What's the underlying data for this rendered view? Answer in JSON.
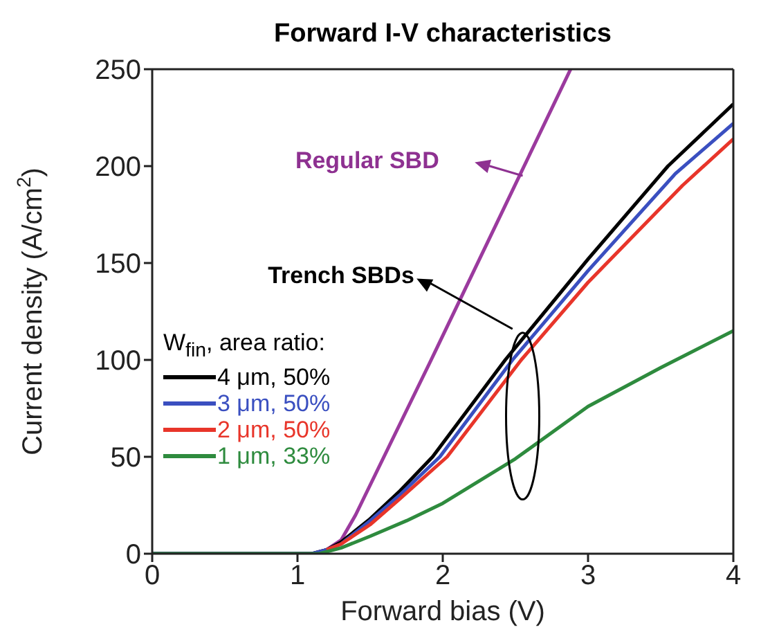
{
  "chart_data": {
    "type": "line",
    "title": "Forward I-V characteristics",
    "xlabel": "Forward bias (V)",
    "ylabel": "Current density (A/cm$^{2}$)",
    "legend_title": "W$_{fin}$, area ratio:",
    "legend": "left",
    "grid": false,
    "marker": "none",
    "line_style": "solid",
    "xlim": [
      0,
      4
    ],
    "ylim": [
      0,
      250
    ],
    "xticks": [
      0,
      1,
      2,
      3,
      4
    ],
    "yticks": [
      0,
      50,
      100,
      150,
      200,
      250
    ],
    "annotations": [
      "Regular SBD",
      "Trench SBDs"
    ],
    "series": [
      {
        "type": "line",
        "color": "#9b3a9e",
        "x": [
          0,
          1.1,
          1.2,
          1.3,
          1.4,
          1.92,
          2.56,
          2.88
        ],
        "values": [
          0,
          0,
          2,
          7,
          20,
          100,
          200,
          250
        ]
      },
      {
        "name": "4 μm, 50%",
        "color": "#000000",
        "x": [
          0,
          1.1,
          1.2,
          1.3,
          1.5,
          1.7,
          1.93,
          2.43,
          3,
          3.55,
          4
        ],
        "values": [
          0,
          0,
          2,
          6,
          18,
          32,
          50,
          100,
          152,
          200,
          232
        ]
      },
      {
        "name": "3 μm, 50%",
        "color": "#3a4fc0",
        "x": [
          0,
          1.1,
          1.2,
          1.3,
          1.5,
          1.7,
          1.98,
          2.48,
          3,
          3.6,
          4
        ],
        "values": [
          0,
          0,
          2,
          5,
          17,
          30,
          50,
          100,
          146,
          196,
          222
        ]
      },
      {
        "name": "2 μm, 50%",
        "color": "#e8352a",
        "x": [
          1.2,
          1.3,
          1.5,
          1.7,
          2.03,
          2.54,
          3,
          3.65,
          4
        ],
        "values": [
          2,
          5,
          15,
          28,
          50,
          100,
          140,
          190,
          214
        ]
      },
      {
        "name": "1 μm, 33%",
        "color": "#2e8b3e",
        "x": [
          0,
          1.15,
          1.3,
          1.5,
          1.75,
          2,
          2.5,
          3,
          3.5,
          4
        ],
        "values": [
          0,
          0,
          3,
          9,
          17,
          26,
          49,
          76,
          96,
          115
        ]
      }
    ]
  }
}
